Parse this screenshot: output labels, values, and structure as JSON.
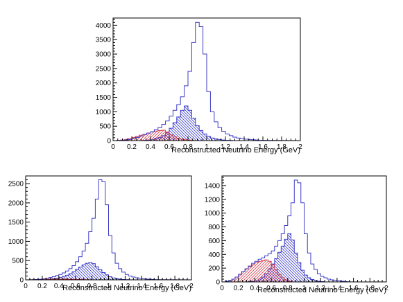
{
  "colors": {
    "total": "#3a3ac8",
    "blue_fill": "#3a3ac8",
    "red": "#d03a4a",
    "frame": "#000000",
    "background": "#ffffff"
  },
  "chart_data": [
    {
      "type": "step-histogram",
      "xlabel": "Reconstructed Neutrino Energy (GeV)",
      "ylabel": "",
      "xlim": [
        0,
        2
      ],
      "ylim": [
        0,
        4250
      ],
      "xticks": [
        0,
        0.2,
        0.4,
        0.6,
        0.8,
        1,
        1.2,
        1.4,
        1.6,
        1.8,
        2
      ],
      "xtick_labels": [
        "0",
        "0.2",
        "0.4",
        "0.6",
        "0.8",
        "1",
        "1.2",
        "1.4",
        "1.6",
        "1.8",
        "2"
      ],
      "yticks": [
        0,
        500,
        1000,
        1500,
        2000,
        2500,
        3000,
        3500,
        4000
      ],
      "ytick_labels": [
        "0",
        "500",
        "1000",
        "1500",
        "2000",
        "2500",
        "3000",
        "3500",
        "4000"
      ],
      "bin_width": 0.04,
      "series": [
        {
          "style": "outline",
          "color": "total",
          "values": [
            0,
            5,
            10,
            20,
            40,
            70,
            110,
            160,
            210,
            260,
            310,
            380,
            450,
            560,
            680,
            850,
            1050,
            1250,
            1520,
            1900,
            2400,
            3400,
            4100,
            3950,
            3000,
            1700,
            1000,
            650,
            450,
            320,
            230,
            170,
            120,
            90,
            70,
            50,
            40,
            30,
            20,
            10
          ]
        },
        {
          "style": "hatched",
          "color": "blue_fill",
          "hatch": "backslash",
          "values": [
            0,
            0,
            0,
            0,
            0,
            0,
            0,
            0,
            10,
            20,
            40,
            70,
            110,
            170,
            270,
            430,
            620,
            820,
            1050,
            1200,
            1050,
            780,
            520,
            350,
            230,
            150,
            90,
            60,
            40,
            20,
            10,
            5,
            0,
            0,
            0,
            0,
            0,
            0,
            0,
            0
          ]
        },
        {
          "style": "hatched",
          "color": "red",
          "hatch": "slash",
          "values": [
            0,
            10,
            20,
            40,
            70,
            110,
            150,
            190,
            220,
            260,
            300,
            330,
            350,
            360,
            300,
            200,
            130,
            80,
            50,
            30,
            15,
            5,
            0,
            0,
            0,
            0,
            0,
            0,
            0,
            0,
            0,
            0,
            0,
            0,
            0,
            0,
            0,
            0,
            0,
            0
          ]
        }
      ]
    },
    {
      "type": "step-histogram",
      "xlabel": "Reconstructed Neutrino Energy (GeV)",
      "ylabel": "",
      "xlim": [
        0,
        2
      ],
      "ylim": [
        0,
        2700
      ],
      "xticks": [
        0,
        0.2,
        0.4,
        0.6,
        0.8,
        1,
        1.2,
        1.4,
        1.6,
        1.8,
        2
      ],
      "xtick_labels": [
        "0",
        "0.2",
        "0.4",
        "0.6",
        "0.8",
        "1",
        "1.2",
        "1.4",
        "1.6",
        "1.8",
        "2"
      ],
      "yticks": [
        0,
        500,
        1000,
        1500,
        2000,
        2500
      ],
      "ytick_labels": [
        "0",
        "500",
        "1000",
        "1500",
        "2000",
        "2500"
      ],
      "bin_width": 0.04,
      "series": [
        {
          "style": "outline",
          "color": "total",
          "values": [
            0,
            2,
            5,
            10,
            15,
            25,
            40,
            60,
            80,
            110,
            140,
            180,
            230,
            290,
            370,
            470,
            600,
            750,
            950,
            1250,
            1600,
            2100,
            2600,
            2550,
            1950,
            1150,
            700,
            430,
            290,
            200,
            140,
            100,
            75,
            55,
            40,
            30,
            20,
            15,
            10,
            5
          ]
        },
        {
          "style": "hatched",
          "color": "blue_fill",
          "hatch": "backslash",
          "values": [
            0,
            0,
            0,
            0,
            0,
            5,
            10,
            20,
            30,
            45,
            65,
            90,
            120,
            160,
            210,
            270,
            330,
            390,
            430,
            450,
            420,
            340,
            260,
            190,
            130,
            80,
            50,
            30,
            20,
            10,
            5,
            0,
            0,
            0,
            0,
            0,
            0,
            0,
            0,
            0
          ]
        },
        {
          "style": "hatched",
          "color": "red",
          "hatch": "slash",
          "values": [
            0,
            2,
            5,
            8,
            10,
            12,
            14,
            16,
            18,
            20,
            20,
            20,
            18,
            15,
            12,
            10,
            8,
            5,
            3,
            2,
            1,
            0,
            0,
            0,
            0,
            0,
            0,
            0,
            0,
            0,
            0,
            0,
            0,
            0,
            0,
            0,
            0,
            0,
            0,
            0
          ]
        }
      ]
    },
    {
      "type": "step-histogram",
      "xlabel": "Reconstructed Neutrino Energy (GeV)",
      "ylabel": "",
      "xlim": [
        0,
        2
      ],
      "ylim": [
        0,
        1540
      ],
      "xticks": [
        0,
        0.2,
        0.4,
        0.6,
        0.8,
        1,
        1.2,
        1.4,
        1.6,
        1.8,
        2
      ],
      "xtick_labels": [
        "0",
        "0.2",
        "0.4",
        "0.6",
        "0.8",
        "1",
        "1.2",
        "1.4",
        "1.6",
        "1.8",
        "2"
      ],
      "yticks": [
        0,
        200,
        400,
        600,
        800,
        1000,
        1200,
        1400
      ],
      "ytick_labels": [
        "0",
        "200",
        "400",
        "600",
        "800",
        "1000",
        "1200",
        "1400"
      ],
      "bin_width": 0.04,
      "series": [
        {
          "style": "outline",
          "color": "total",
          "values": [
            0,
            10,
            20,
            40,
            70,
            110,
            150,
            190,
            230,
            270,
            300,
            330,
            350,
            380,
            410,
            450,
            520,
            600,
            700,
            820,
            960,
            1150,
            1480,
            1440,
            1150,
            700,
            420,
            260,
            180,
            120,
            80,
            60,
            40,
            30,
            20,
            15,
            10,
            5,
            3,
            0
          ]
        },
        {
          "style": "hatched",
          "color": "blue_fill",
          "hatch": "backslash",
          "values": [
            0,
            0,
            0,
            0,
            0,
            0,
            0,
            0,
            5,
            10,
            20,
            40,
            70,
            120,
            190,
            260,
            340,
            430,
            520,
            620,
            700,
            610,
            420,
            280,
            170,
            100,
            60,
            35,
            20,
            10,
            5,
            0,
            0,
            0,
            0,
            0,
            0,
            0,
            0,
            0
          ]
        },
        {
          "style": "hatched",
          "color": "red",
          "hatch": "slash",
          "values": [
            0,
            10,
            20,
            40,
            70,
            110,
            150,
            190,
            220,
            250,
            280,
            300,
            310,
            320,
            300,
            250,
            180,
            110,
            60,
            30,
            10,
            0,
            0,
            0,
            0,
            0,
            0,
            0,
            0,
            0,
            0,
            0,
            0,
            0,
            0,
            0,
            0,
            0,
            0,
            0
          ]
        }
      ]
    }
  ]
}
